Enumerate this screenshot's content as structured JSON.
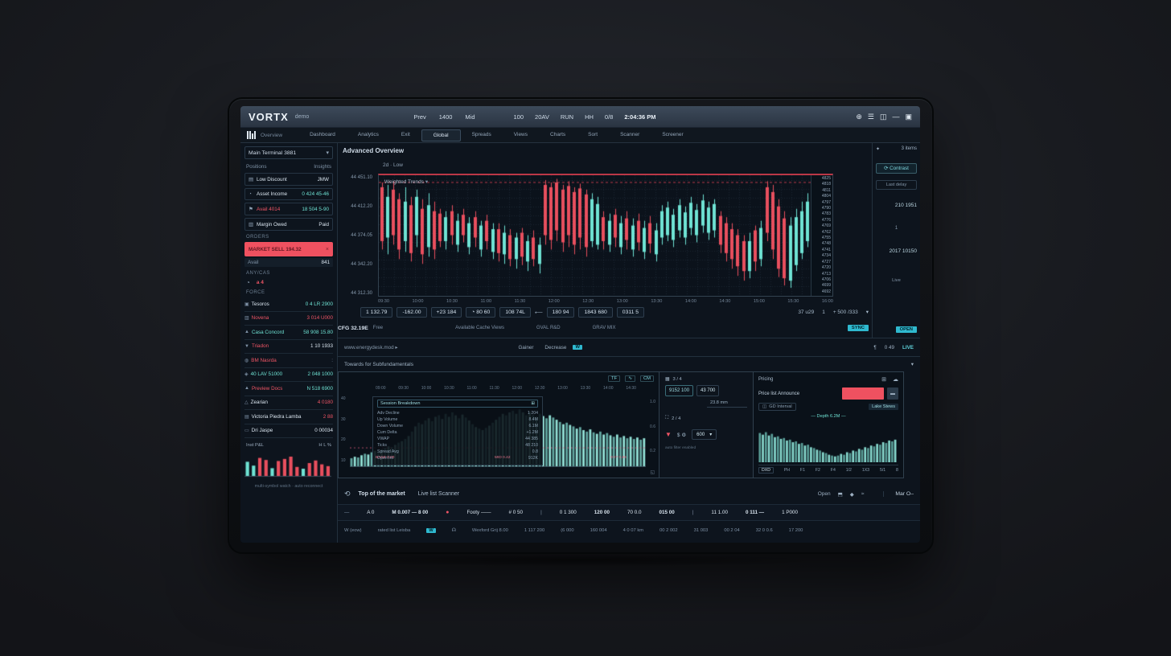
{
  "colors": {
    "up": "#6fe3d4",
    "down": "#e84f5e",
    "accent": "#2fb9cf",
    "red_button": "#ef5160"
  },
  "topbar": {
    "brand": "VORTX",
    "brand_tag": "demo",
    "menu": [
      {
        "t": "Prev"
      },
      {
        "t": "1400"
      },
      {
        "t": "Mid"
      }
    ],
    "right": [
      {
        "t": "100"
      },
      {
        "t": "20AV"
      },
      {
        "t": "RUN"
      },
      {
        "t": "HH"
      },
      {
        "t": "0/8"
      }
    ],
    "clock": "2:04:36 PM",
    "icons": [
      {
        "t": "⊕"
      },
      {
        "t": "☰"
      },
      {
        "t": "◫"
      },
      {
        "t": "—"
      },
      {
        "t": "▣"
      }
    ]
  },
  "nav2": {
    "logo_label": "Overview",
    "tabs": [
      {
        "t": "Dashboard"
      },
      {
        "t": "Analytics"
      },
      {
        "t": "Exit"
      },
      {
        "t": "Global",
        "c": "active"
      },
      {
        "t": "Spreads"
      },
      {
        "t": "Views"
      },
      {
        "t": "Charts"
      },
      {
        "t": "Sort"
      },
      {
        "t": "Scanner"
      },
      {
        "t": "Screener"
      }
    ]
  },
  "sidebar": {
    "selector": "Main Terminal 3881",
    "selector_chev": "▾",
    "tabs_left": "Positions",
    "tabs_right": "Insights",
    "orders": [
      {
        "ic": "▤",
        "lb": "Low Discount",
        "lc": "c-w",
        "vl": "JMW",
        "vc": "c-w"
      },
      {
        "ic": "◔",
        "lb": "Asset Income",
        "lc": "c-w",
        "vl": "0 424 45-46",
        "vc": "c-up"
      },
      {
        "ic": "⚑",
        "lb": "Avail 4014",
        "lc": "c-down",
        "vl": "18 504 5-90",
        "vc": "c-up"
      },
      {
        "ic": "▥",
        "lb": "Margin Owed",
        "lc": "c-w",
        "vl": "Paid",
        "vc": "c-w"
      }
    ],
    "orders_label": "ORDERS",
    "sell_button": "MARKET SELL 194.32",
    "sell_x": "×",
    "avail_label": "Avail",
    "avail_value": "841",
    "pair_label": "ANY/CAS",
    "alert_icon": "◔",
    "alert_badge": "a 4",
    "force_label": "FORCE",
    "watchlist": [
      {
        "ic": "▣",
        "sym": "Tesoros",
        "sc": "c-w",
        "vl": "0 4 LR 2900",
        "vc": "c-up"
      },
      {
        "ic": "▥",
        "sym": "Novena",
        "sc": "c-down",
        "vl": "3 014 U000",
        "vc": "c-down"
      },
      {
        "ic": "▲",
        "sym": "Casa Concord",
        "sc": "c-up",
        "vl": "58 908 15.80",
        "vc": "c-up"
      },
      {
        "ic": "▼",
        "sym": "Triadon",
        "sc": "c-down",
        "vl": "1 10 1933",
        "vc": "c-w"
      },
      {
        "ic": "◍",
        "sym": "BM Nasrda",
        "sc": "c-down",
        "vl": ":",
        "vc": "c-d"
      },
      {
        "ic": "◈",
        "sym": "40 LAV 51000",
        "sc": "c-up",
        "vl": "2 048 1000",
        "vc": "c-up"
      },
      {
        "ic": "▲",
        "sym": "Preview Docs",
        "sc": "c-down",
        "vl": "N 518 6900",
        "vc": "c-up"
      },
      {
        "ic": "△",
        "sym": "Zearian",
        "sc": "c-w",
        "vl": "4 0180",
        "vc": "c-down"
      },
      {
        "ic": "▤",
        "sym": "Victoria Piedra Lamba",
        "sc": "c-w",
        "vl": "2 88",
        "vc": "c-down"
      },
      {
        "ic": "▭",
        "sym": "Dri Jaspe",
        "sc": "c-w",
        "vl": "0 00034",
        "vc": "c-w"
      }
    ],
    "mini_title": "Inst P&L",
    "mini_legend": "H  L  %",
    "caption": "multi-symbol watch · auto reconnect"
  },
  "chart_panel": {
    "header": "Advanced Overview",
    "sub": "2d · Low",
    "inner_title": "Weighted Trends",
    "inner_chev": "▾",
    "toolbar": [
      {
        "t": "1 132.79"
      },
      {
        "t": "-162.00"
      },
      {
        "t": "+23 184"
      },
      {
        "t": "◔ 80 60"
      },
      {
        "t": "108 74L"
      }
    ],
    "toolbar_arrow": "⟵",
    "toolbar2": [
      {
        "t": "180 94"
      },
      {
        "t": "1843 680"
      },
      {
        "t": "0311 5"
      }
    ],
    "right_items": [
      {
        "t": "37 u29"
      },
      {
        "t": "1"
      },
      {
        "t": "+ 500 /333"
      },
      {
        "t": "▾"
      }
    ],
    "cfg": "CFG 32.19E",
    "cfg_sub": "Free",
    "mid_items": [
      {
        "t": "Available Cache Views"
      },
      {
        "t": "GVAL R&D"
      },
      {
        "t": "GRAV MIX"
      }
    ],
    "badge": "SYNC"
  },
  "order_panel": {
    "star": "✦",
    "items": "3 items",
    "button": "⟳ Contrast",
    "box": "Last delay",
    "v1": "210 1951",
    "sep": "1",
    "v2": "2017 10150",
    "live": "Live",
    "badge": "OPEN"
  },
  "divider_row": {
    "left": "www.energydesk.mod ▸",
    "center": [
      {
        "t": "Gainer"
      },
      {
        "t": "Decrease"
      }
    ],
    "center_badge": "W",
    "right_mark": "¶",
    "right_val": "0 49",
    "right_live": "LIVE"
  },
  "section_header": {
    "title": "Towards for Subfundamentals",
    "chev": "▾"
  },
  "bottom_left": {
    "icons": [
      {
        "t": "TF"
      },
      {
        "t": "∿"
      },
      {
        "t": "CM"
      }
    ],
    "ticks": [
      {
        "t": "09:00"
      },
      {
        "t": "09:30"
      },
      {
        "t": "10:00"
      },
      {
        "t": "10:30"
      },
      {
        "t": "11:00"
      },
      {
        "t": "11:30"
      },
      {
        "t": "12:00"
      },
      {
        "t": "12:30"
      },
      {
        "t": "13:00"
      },
      {
        "t": "13:30"
      },
      {
        "t": "14:00"
      },
      {
        "t": "14:30"
      }
    ],
    "y_left": [
      {
        "t": "40"
      },
      {
        "t": "30"
      },
      {
        "t": "20"
      },
      {
        "t": "10"
      }
    ],
    "y_right": [
      {
        "t": "1.0"
      },
      {
        "t": "0.6"
      },
      {
        "t": "0.2"
      }
    ],
    "legend_head_l": "Session Breakdown",
    "legend_head_r": "⊞",
    "legend": [
      {
        "t": "Adv Decline",
        "v": "1 204"
      },
      {
        "t": "Up Volume",
        "v": "8.4M"
      },
      {
        "t": "Down Volume",
        "v": "6.1M"
      },
      {
        "t": "Cum Delta",
        "v": "+1.2M"
      },
      {
        "t": "VWAP",
        "v": "44 385"
      },
      {
        "t": "Ticks",
        "v": "48 210"
      },
      {
        "t": "Spread Avg",
        "v": "0.8"
      },
      {
        "t": "Open Int",
        "v": "912K"
      }
    ],
    "baseline_labels": [
      {
        "t": "BASE 0.00"
      },
      {
        "t": "MID 0.42"
      },
      {
        "t": "EXT 0.86"
      }
    ],
    "corner": "◱"
  },
  "bottom_mid": {
    "g1_icon": "▦",
    "g1_label": "3 / 4",
    "box1": "9152 100",
    "box2": "43 700",
    "box_sub": "23.8 mm",
    "g2_icon": "⛶",
    "g2_label": "2 / 4",
    "funnel": "▼",
    "ds": "$ ⚙",
    "select": "600",
    "select_chev": "▾",
    "caption": "auto filter enabled"
  },
  "bottom_right": {
    "title": "Pricing",
    "icons": [
      {
        "t": "⊞"
      },
      {
        "t": "☁"
      }
    ],
    "announce": "Price list Announce",
    "mini_btn": "▬",
    "chip_icon": "◫",
    "chip": "GD Interval",
    "right_small": "Lake Stews",
    "depth_label": "— Depth 6.2M —",
    "axis_box": "DXD",
    "axis": [
      {
        "t": "PH"
      },
      {
        "t": "F1"
      },
      {
        "t": "F2"
      },
      {
        "t": "F4"
      },
      {
        "t": "1/2"
      },
      {
        "t": "1X3"
      },
      {
        "t": "5/1"
      },
      {
        "t": "8"
      }
    ]
  },
  "footer": {
    "icon": "⟲",
    "t1": "Top of the market",
    "t2": "Live list Scanner",
    "right": [
      {
        "t": "Open"
      },
      {
        "t": "⬒"
      },
      {
        "t": "◆"
      },
      {
        "t": "≈"
      }
    ],
    "far": "Mar O–",
    "row2": [
      {
        "t": "—",
        "c": "c-d"
      },
      {
        "t": "A 0",
        "c": "c-w"
      },
      {
        "t": "M 0.007 — 8 00",
        "c": "c-b"
      },
      {
        "t": "●",
        "c": "c-dot"
      },
      {
        "t": "Footy ——",
        "c": "c-w"
      },
      {
        "t": "# 0 50",
        "c": "c-w"
      },
      {
        "t": "|",
        "c": "c-d"
      },
      {
        "t": "0 1 300",
        "c": "c-w"
      },
      {
        "t": "120 00",
        "c": "c-b"
      },
      {
        "t": "70 0.0",
        "c": "c-w"
      },
      {
        "t": "015 00",
        "c": "c-b"
      },
      {
        "t": "|",
        "c": "c-d"
      },
      {
        "t": "11 1.00",
        "c": "c-w"
      },
      {
        "t": "0 111 —",
        "c": "c-b"
      },
      {
        "t": "1 P000",
        "c": "c-w"
      }
    ],
    "row3": [
      {
        "t": "W (eow)",
        "c": "c-d"
      },
      {
        "t": "rated list Leisba",
        "c": "c-d"
      },
      {
        "t": "W",
        "c": "c-badge"
      },
      {
        "t": "☊",
        "c": "c-d"
      },
      {
        "t": "Wexford Grij 8.00",
        "c": "c-d"
      },
      {
        "t": "1 117 200",
        "c": "c-d"
      },
      {
        "t": "(6 000",
        "c": "c-d"
      },
      {
        "t": "160 004",
        "c": "c-d"
      },
      {
        "t": "4 0 07 km",
        "c": "c-d"
      },
      {
        "t": "00 2 002",
        "c": "c-d"
      },
      {
        "t": "31 003",
        "c": "c-d"
      },
      {
        "t": "00 2 04",
        "c": "c-d"
      },
      {
        "t": "32 0 0.6",
        "c": "c-d"
      },
      {
        "t": "17 200",
        "c": "c-d"
      }
    ]
  },
  "chart_data": [
    {
      "id": "main-candles",
      "type": "candlestick",
      "title": "Weighted Trends",
      "note": "values are percent of chart height from top: [high,low,open,close]",
      "y_left_labels": [
        "44 451.10",
        "44 412.20",
        "44 374.05",
        "44 342.20",
        "44 312.30"
      ],
      "y_right_labels": [
        "4825",
        "4818",
        "4811",
        "4804",
        "4797",
        "4790",
        "4783",
        "4776",
        "4769",
        "4762",
        "4755",
        "4748",
        "4741",
        "4734",
        "4727",
        "4720",
        "4713",
        "4706",
        "4699",
        "4692"
      ],
      "x_ticks": [
        "09:30",
        "10:00",
        "10:30",
        "11:00",
        "11:30",
        "12:00",
        "12:30",
        "13:00",
        "13:30",
        "14:00",
        "14:30",
        "15:00",
        "15:30",
        "16:00"
      ],
      "level_line_pct": 6,
      "candles": [
        [
          6,
          62,
          10,
          55
        ],
        [
          8,
          66,
          52,
          18
        ],
        [
          5,
          58,
          12,
          50
        ],
        [
          15,
          70,
          20,
          62
        ],
        [
          10,
          64,
          55,
          22
        ],
        [
          18,
          72,
          25,
          65
        ],
        [
          12,
          60,
          50,
          18
        ],
        [
          20,
          74,
          28,
          66
        ],
        [
          15,
          68,
          60,
          25
        ],
        [
          22,
          70,
          30,
          62
        ],
        [
          28,
          60,
          32,
          55
        ],
        [
          30,
          62,
          55,
          35
        ],
        [
          25,
          58,
          30,
          50
        ],
        [
          32,
          64,
          58,
          38
        ],
        [
          28,
          56,
          33,
          50
        ],
        [
          35,
          66,
          60,
          40
        ],
        [
          30,
          60,
          35,
          52
        ],
        [
          38,
          68,
          62,
          42
        ],
        [
          33,
          62,
          38,
          55
        ],
        [
          40,
          70,
          64,
          45
        ],
        [
          40,
          72,
          45,
          65
        ],
        [
          42,
          74,
          66,
          48
        ],
        [
          45,
          76,
          50,
          70
        ],
        [
          48,
          78,
          70,
          52
        ],
        [
          44,
          75,
          48,
          68
        ],
        [
          50,
          80,
          72,
          55
        ],
        [
          46,
          76,
          52,
          70
        ],
        [
          52,
          82,
          74,
          58
        ],
        [
          4,
          58,
          8,
          50
        ],
        [
          6,
          62,
          10,
          54
        ],
        [
          3,
          55,
          6,
          46
        ],
        [
          8,
          64,
          12,
          56
        ],
        [
          5,
          60,
          9,
          50
        ],
        [
          10,
          66,
          14,
          58
        ],
        [
          7,
          62,
          11,
          52
        ],
        [
          12,
          68,
          16,
          60
        ],
        [
          15,
          60,
          55,
          20
        ],
        [
          18,
          62,
          58,
          24
        ],
        [
          30,
          62,
          35,
          55
        ],
        [
          32,
          64,
          58,
          38
        ],
        [
          28,
          60,
          33,
          52
        ],
        [
          34,
          66,
          60,
          40
        ],
        [
          30,
          62,
          36,
          54
        ],
        [
          36,
          68,
          62,
          42
        ],
        [
          32,
          63,
          38,
          56
        ],
        [
          38,
          70,
          64,
          44
        ],
        [
          34,
          65,
          40,
          57
        ],
        [
          40,
          72,
          66,
          46
        ],
        [
          25,
          58,
          52,
          30
        ],
        [
          22,
          55,
          50,
          27
        ],
        [
          28,
          60,
          54,
          33
        ],
        [
          20,
          52,
          46,
          25
        ],
        [
          26,
          58,
          52,
          31
        ],
        [
          18,
          50,
          44,
          23
        ],
        [
          24,
          56,
          50,
          29
        ],
        [
          16,
          48,
          42,
          21
        ],
        [
          22,
          54,
          48,
          27
        ],
        [
          20,
          52,
          46,
          24
        ],
        [
          30,
          65,
          34,
          58
        ],
        [
          35,
          72,
          40,
          65
        ],
        [
          40,
          78,
          45,
          70
        ],
        [
          45,
          84,
          50,
          76
        ],
        [
          50,
          88,
          55,
          80
        ],
        [
          48,
          86,
          80,
          55
        ],
        [
          42,
          80,
          46,
          72
        ],
        [
          38,
          76,
          70,
          44
        ],
        [
          5,
          55,
          10,
          48
        ],
        [
          8,
          70,
          14,
          62
        ],
        [
          20,
          85,
          26,
          78
        ],
        [
          30,
          92,
          36,
          86
        ],
        [
          35,
          94,
          88,
          42
        ],
        [
          28,
          80,
          75,
          35
        ],
        [
          22,
          70,
          65,
          30
        ],
        [
          15,
          60,
          55,
          22
        ]
      ]
    },
    {
      "id": "volume-profile",
      "type": "bar",
      "color": "#9beee2",
      "baseline_pct": 74,
      "values": [
        12,
        14,
        13,
        16,
        18,
        17,
        20,
        22,
        21,
        24,
        26,
        28,
        27,
        30,
        33,
        35,
        38,
        42,
        48,
        55,
        60,
        58,
        63,
        66,
        62,
        68,
        70,
        65,
        72,
        68,
        74,
        70,
        66,
        71,
        67,
        63,
        58,
        54,
        52,
        50,
        53,
        56,
        60,
        64,
        68,
        72,
        70,
        74,
        76,
        72,
        78,
        74,
        70,
        75,
        71,
        68,
        72,
        69,
        66,
        70,
        67,
        64,
        61,
        58,
        60,
        57,
        55,
        52,
        54,
        50,
        48,
        51,
        47,
        45,
        48,
        44,
        46,
        43,
        41,
        44,
        40,
        42,
        39,
        41,
        38,
        40,
        37,
        39
      ]
    },
    {
      "id": "depth",
      "type": "bar",
      "color": "#8fe7da",
      "values": [
        70,
        66,
        72,
        64,
        68,
        60,
        62,
        56,
        58,
        52,
        54,
        48,
        50,
        44,
        46,
        40,
        42,
        36,
        34,
        30,
        28,
        24,
        22,
        18,
        16,
        14,
        16,
        20,
        18,
        24,
        22,
        28,
        26,
        32,
        30,
        36,
        34,
        40,
        38,
        44,
        42,
        48,
        46,
        52,
        50,
        54
      ]
    },
    {
      "id": "sidebar-volume",
      "type": "bar",
      "bars": [
        {
          "v": 55,
          "c": "up"
        },
        {
          "v": 40,
          "c": "up"
        },
        {
          "v": 70,
          "c": "down"
        },
        {
          "v": 62,
          "c": "down"
        },
        {
          "v": 30,
          "c": "up"
        },
        {
          "v": 58,
          "c": "down"
        },
        {
          "v": 66,
          "c": "down"
        },
        {
          "v": 75,
          "c": "down"
        },
        {
          "v": 35,
          "c": "down"
        },
        {
          "v": 28,
          "c": "up"
        },
        {
          "v": 50,
          "c": "down"
        },
        {
          "v": 60,
          "c": "down"
        },
        {
          "v": 45,
          "c": "down"
        },
        {
          "v": 38,
          "c": "down"
        }
      ]
    }
  ]
}
